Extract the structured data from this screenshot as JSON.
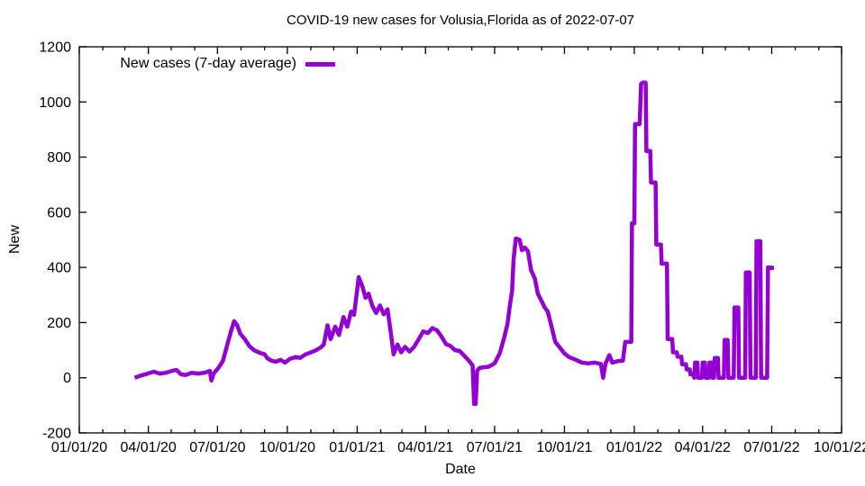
{
  "chart_data": {
    "type": "line",
    "title": "COVID-19 new cases for Volusia,Florida as of 2022-07-07",
    "xlabel": "Date",
    "ylabel": "New",
    "x_range": [
      "2020-01-01",
      "2022-10-01"
    ],
    "ylim": [
      -200,
      1200
    ],
    "y_ticks": [
      -200,
      0,
      200,
      400,
      600,
      800,
      1000,
      1200
    ],
    "x_tick_labels": [
      "01/01/20",
      "04/01/20",
      "07/01/20",
      "10/01/20",
      "01/01/21",
      "04/01/21",
      "07/01/21",
      "10/01/21",
      "01/01/22",
      "04/01/22",
      "07/01/22",
      "10/01/22"
    ],
    "x_minor_ticks": "monthly",
    "grid": "off",
    "legend": {
      "label": "New cases (7-day average)",
      "position": "top-left"
    },
    "line_color": "#9400d3",
    "border_color": "#000000",
    "background": "#ffffff",
    "series": [
      {
        "name": "New cases (7-day average)",
        "points": [
          [
            "2020-03-14",
            0
          ],
          [
            "2020-03-22",
            8
          ],
          [
            "2020-03-30",
            14
          ],
          [
            "2020-04-08",
            22
          ],
          [
            "2020-04-16",
            15
          ],
          [
            "2020-04-24",
            18
          ],
          [
            "2020-05-02",
            25
          ],
          [
            "2020-05-08",
            28
          ],
          [
            "2020-05-14",
            12
          ],
          [
            "2020-05-20",
            10
          ],
          [
            "2020-05-28",
            18
          ],
          [
            "2020-06-05",
            15
          ],
          [
            "2020-06-14",
            18
          ],
          [
            "2020-06-21",
            25
          ],
          [
            "2020-06-23",
            -10
          ],
          [
            "2020-06-26",
            15
          ],
          [
            "2020-07-02",
            35
          ],
          [
            "2020-07-08",
            60
          ],
          [
            "2020-07-14",
            120
          ],
          [
            "2020-07-19",
            170
          ],
          [
            "2020-07-23",
            205
          ],
          [
            "2020-07-27",
            190
          ],
          [
            "2020-07-31",
            160
          ],
          [
            "2020-08-06",
            140
          ],
          [
            "2020-08-12",
            115
          ],
          [
            "2020-08-18",
            100
          ],
          [
            "2020-08-26",
            90
          ],
          [
            "2020-09-01",
            85
          ],
          [
            "2020-09-05",
            70
          ],
          [
            "2020-09-10",
            62
          ],
          [
            "2020-09-16",
            58
          ],
          [
            "2020-09-22",
            65
          ],
          [
            "2020-09-28",
            55
          ],
          [
            "2020-10-04",
            68
          ],
          [
            "2020-10-12",
            75
          ],
          [
            "2020-10-18",
            72
          ],
          [
            "2020-10-25",
            85
          ],
          [
            "2020-11-01",
            92
          ],
          [
            "2020-11-08",
            100
          ],
          [
            "2020-11-14",
            110
          ],
          [
            "2020-11-18",
            120
          ],
          [
            "2020-11-23",
            190
          ],
          [
            "2020-11-27",
            140
          ],
          [
            "2020-12-03",
            185
          ],
          [
            "2020-12-08",
            155
          ],
          [
            "2020-12-14",
            220
          ],
          [
            "2020-12-19",
            185
          ],
          [
            "2020-12-24",
            240
          ],
          [
            "2020-12-28",
            228
          ],
          [
            "2021-01-03",
            365
          ],
          [
            "2021-01-08",
            330
          ],
          [
            "2021-01-12",
            290
          ],
          [
            "2021-01-16",
            305
          ],
          [
            "2021-01-21",
            260
          ],
          [
            "2021-01-26",
            235
          ],
          [
            "2021-01-31",
            262
          ],
          [
            "2021-02-05",
            230
          ],
          [
            "2021-02-10",
            248
          ],
          [
            "2021-02-15",
            150
          ],
          [
            "2021-02-18",
            85
          ],
          [
            "2021-02-23",
            120
          ],
          [
            "2021-02-28",
            92
          ],
          [
            "2021-03-05",
            112
          ],
          [
            "2021-03-11",
            95
          ],
          [
            "2021-03-17",
            112
          ],
          [
            "2021-03-23",
            140
          ],
          [
            "2021-03-29",
            168
          ],
          [
            "2021-04-04",
            162
          ],
          [
            "2021-04-10",
            180
          ],
          [
            "2021-04-16",
            172
          ],
          [
            "2021-04-22",
            150
          ],
          [
            "2021-04-28",
            122
          ],
          [
            "2021-05-04",
            115
          ],
          [
            "2021-05-10",
            100
          ],
          [
            "2021-05-16",
            97
          ],
          [
            "2021-05-22",
            80
          ],
          [
            "2021-05-28",
            62
          ],
          [
            "2021-06-02",
            45
          ],
          [
            "2021-06-04",
            -95
          ],
          [
            "2021-06-06",
            -95
          ],
          [
            "2021-06-08",
            25
          ],
          [
            "2021-06-11",
            35
          ],
          [
            "2021-06-16",
            38
          ],
          [
            "2021-06-23",
            40
          ],
          [
            "2021-07-01",
            52
          ],
          [
            "2021-07-08",
            90
          ],
          [
            "2021-07-14",
            150
          ],
          [
            "2021-07-18",
            195
          ],
          [
            "2021-07-21",
            260
          ],
          [
            "2021-07-24",
            315
          ],
          [
            "2021-07-26",
            430
          ],
          [
            "2021-07-29",
            505
          ],
          [
            "2021-08-03",
            500
          ],
          [
            "2021-08-06",
            462
          ],
          [
            "2021-08-10",
            472
          ],
          [
            "2021-08-14",
            458
          ],
          [
            "2021-08-18",
            390
          ],
          [
            "2021-08-23",
            360
          ],
          [
            "2021-08-27",
            305
          ],
          [
            "2021-09-01",
            277
          ],
          [
            "2021-09-05",
            255
          ],
          [
            "2021-09-09",
            240
          ],
          [
            "2021-09-13",
            196
          ],
          [
            "2021-09-19",
            130
          ],
          [
            "2021-09-25",
            109
          ],
          [
            "2021-10-01",
            88
          ],
          [
            "2021-10-07",
            75
          ],
          [
            "2021-10-16",
            65
          ],
          [
            "2021-10-24",
            55
          ],
          [
            "2021-11-01",
            52
          ],
          [
            "2021-11-10",
            55
          ],
          [
            "2021-11-18",
            50
          ],
          [
            "2021-11-21",
            0
          ],
          [
            "2021-11-24",
            50
          ],
          [
            "2021-11-29",
            82
          ],
          [
            "2021-12-03",
            55
          ],
          [
            "2021-12-10",
            60
          ],
          [
            "2021-12-17",
            62
          ],
          [
            "2021-12-20",
            130
          ],
          [
            "2021-12-28",
            130
          ],
          [
            "2021-12-29",
            560
          ],
          [
            "2022-01-01",
            560
          ],
          [
            "2022-01-02",
            920
          ],
          [
            "2022-01-08",
            920
          ],
          [
            "2022-01-10",
            1065
          ],
          [
            "2022-01-12",
            1070
          ],
          [
            "2022-01-16",
            1070
          ],
          [
            "2022-01-17",
            822
          ],
          [
            "2022-01-22",
            822
          ],
          [
            "2022-01-23",
            708
          ],
          [
            "2022-01-29",
            708
          ],
          [
            "2022-01-30",
            483
          ],
          [
            "2022-02-05",
            483
          ],
          [
            "2022-02-06",
            414
          ],
          [
            "2022-02-13",
            414
          ],
          [
            "2022-02-14",
            140
          ],
          [
            "2022-02-20",
            140
          ],
          [
            "2022-02-21",
            92
          ],
          [
            "2022-02-26",
            92
          ],
          [
            "2022-02-27",
            76
          ],
          [
            "2022-03-04",
            76
          ],
          [
            "2022-03-05",
            49
          ],
          [
            "2022-03-10",
            49
          ],
          [
            "2022-03-11",
            30
          ],
          [
            "2022-03-15",
            30
          ],
          [
            "2022-03-16",
            12
          ],
          [
            "2022-03-20",
            12
          ],
          [
            "2022-03-21",
            0
          ],
          [
            "2022-03-22",
            55
          ],
          [
            "2022-03-25",
            55
          ],
          [
            "2022-03-26",
            0
          ],
          [
            "2022-03-31",
            0
          ],
          [
            "2022-04-01",
            55
          ],
          [
            "2022-04-04",
            55
          ],
          [
            "2022-04-05",
            0
          ],
          [
            "2022-04-09",
            0
          ],
          [
            "2022-04-10",
            55
          ],
          [
            "2022-04-13",
            55
          ],
          [
            "2022-04-14",
            0
          ],
          [
            "2022-04-16",
            0
          ],
          [
            "2022-04-17",
            72
          ],
          [
            "2022-04-21",
            72
          ],
          [
            "2022-04-22",
            0
          ],
          [
            "2022-04-29",
            0
          ],
          [
            "2022-04-30",
            137
          ],
          [
            "2022-05-04",
            137
          ],
          [
            "2022-05-05",
            0
          ],
          [
            "2022-05-12",
            0
          ],
          [
            "2022-05-13",
            255
          ],
          [
            "2022-05-18",
            255
          ],
          [
            "2022-05-19",
            0
          ],
          [
            "2022-05-27",
            0
          ],
          [
            "2022-05-28",
            382
          ],
          [
            "2022-06-02",
            382
          ],
          [
            "2022-06-03",
            0
          ],
          [
            "2022-06-10",
            0
          ],
          [
            "2022-06-11",
            495
          ],
          [
            "2022-06-16",
            495
          ],
          [
            "2022-06-17",
            0
          ],
          [
            "2022-06-25",
            0
          ],
          [
            "2022-06-26",
            400
          ],
          [
            "2022-07-04",
            398
          ]
        ]
      }
    ]
  }
}
